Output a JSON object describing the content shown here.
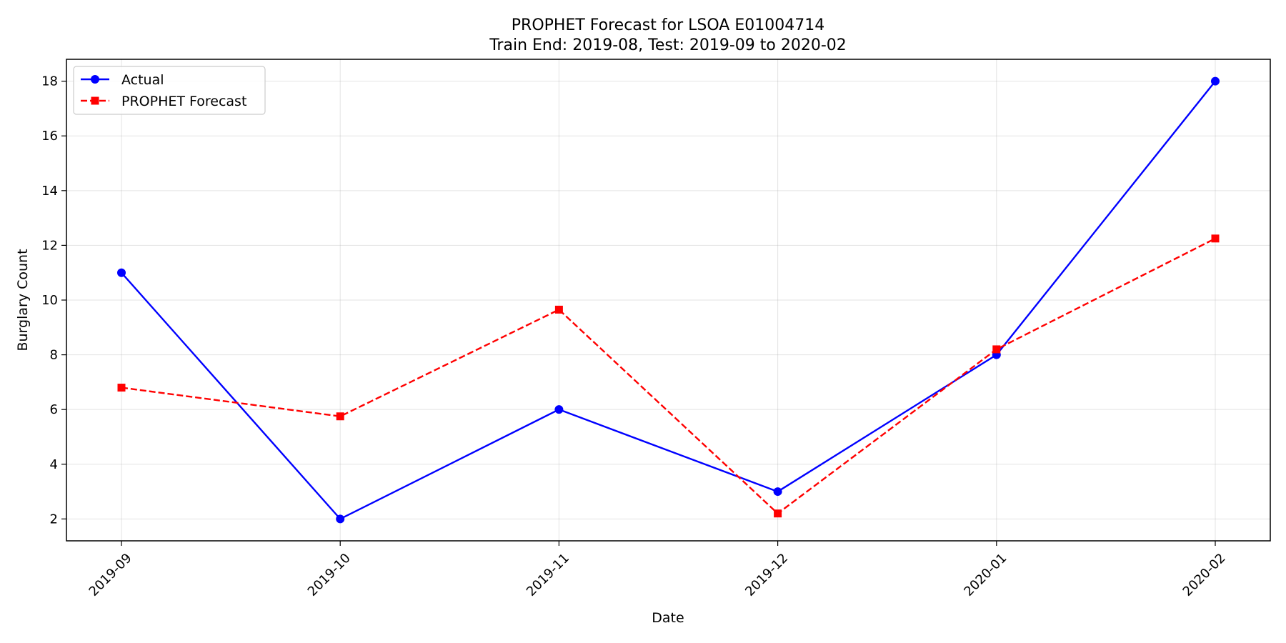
{
  "chart_data": {
    "type": "line",
    "title": "PROPHET Forecast for LSOA E01004714",
    "subtitle": "Train End: 2019-08, Test: 2019-09 to 2020-02",
    "xlabel": "Date",
    "ylabel": "Burglary Count",
    "categories": [
      "2019-09",
      "2019-10",
      "2019-11",
      "2019-12",
      "2020-01",
      "2020-02"
    ],
    "yticks": [
      2,
      4,
      6,
      8,
      10,
      12,
      14,
      16,
      18
    ],
    "ylim": [
      1.2,
      18.8
    ],
    "grid": true,
    "legend_position": "top-left",
    "series": [
      {
        "name": "Actual",
        "values": [
          11,
          2,
          6,
          3,
          8,
          18
        ],
        "color": "#0000ff",
        "line_style": "solid",
        "marker": "circle"
      },
      {
        "name": "PROPHET Forecast",
        "values": [
          6.8,
          5.75,
          9.65,
          2.2,
          8.2,
          12.25
        ],
        "color": "#ff0000",
        "line_style": "dashed",
        "marker": "square"
      }
    ]
  }
}
